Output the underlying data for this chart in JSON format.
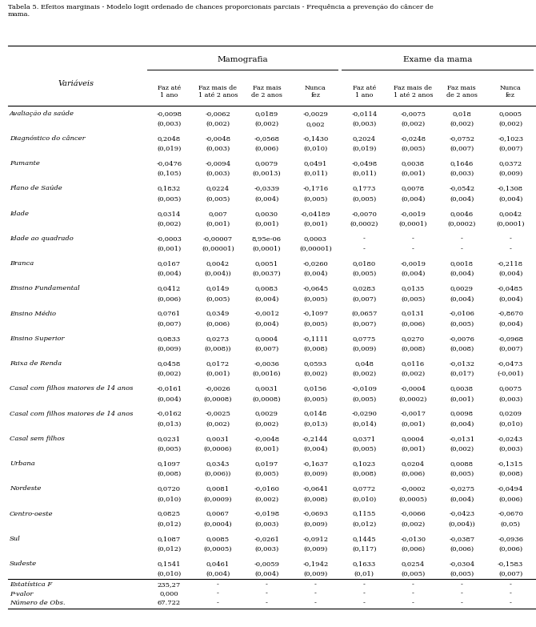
{
  "mamografia_header": "Mamografia",
  "exame_header": "Exame da mama",
  "col_headers_mamo": [
    "Faz até\n1 ano",
    "Faz mais de\n1 até 2 anos",
    "Faz mais\nde 2 anos",
    "Nunca\nfez"
  ],
  "col_headers_exame": [
    "Faz até\n1 ano",
    "Faz mais de\n1 até 2 anos",
    "Faz mais\nde 2 anos",
    "Nunca\nfez"
  ],
  "row_labels": [
    "Avaliação da saúde",
    "Diagnóstico do câncer",
    "Fumante",
    "Plano de Saúde",
    "Idade",
    "Idade ao quadrado",
    "Branca",
    "Ensino Fundamental",
    "Ensino Médio",
    "Ensino Superior",
    "Faixa de Renda",
    "Casal com filhos maiores de 14 anos",
    "Casal com filhos maiores de 14 anos",
    "Casal sem filhos",
    "Urbana",
    "Nordeste",
    "Centro-oeste",
    "Sul",
    "Sudeste"
  ],
  "data_rows": [
    [
      "-0,0098",
      "-0,0062",
      "0,0189",
      "-0,0029",
      "-0,0114",
      "-0,0075",
      "0,018",
      "0,0005"
    ],
    [
      "(0,003)",
      "(0,002)",
      "(0,002)",
      "0,002",
      "(0,003)",
      "(0,002)",
      "(0,002)",
      "(0,002)"
    ],
    [
      "0,2048",
      "-0,0048",
      "-0,0568",
      "-0,1430",
      "0,2024",
      "-0,0248",
      "-0,0752",
      "-0,1023"
    ],
    [
      "(0,019)",
      "(0,003)",
      "(0,006)",
      "(0,010)",
      "(0,019)",
      "(0,005)",
      "(0,007)",
      "(0,007)"
    ],
    [
      "-0,0476",
      "-0,0094",
      "0,0079",
      "0,0491",
      "-0,0498",
      "0,0038",
      "0,1646",
      "0,0372"
    ],
    [
      "(0,105)",
      "(0,003)",
      "(0,0013)",
      "(0,011)",
      "(0,011)",
      "(0,001)",
      "(0,003)",
      "(0,009)"
    ],
    [
      "0,1832",
      "0,0224",
      "-0,0339",
      "-0,1716",
      "0,1773",
      "0,0078",
      "-0,0542",
      "-0,1308"
    ],
    [
      "(0,005)",
      "(0,005)",
      "(0,004)",
      "(0,005)",
      "(0,005)",
      "(0,004)",
      "(0,004)",
      "(0,004)"
    ],
    [
      "0,0314",
      "0,007",
      "0,0030",
      "-0,04189",
      "-0,0070",
      "-0,0019",
      "0,0046",
      "0,0042"
    ],
    [
      "(0,002)",
      "(0,001)",
      "(0,001)",
      "(0,001)",
      "(0,0002)",
      "(0,0001)",
      "(0,0002)",
      "(0,0001)"
    ],
    [
      "-0,0003",
      "-0,00007",
      "8,95e-06",
      "0,0003",
      "-",
      "-",
      "-",
      "-"
    ],
    [
      "(0,001)",
      "(0,00001)",
      "(0,0001)",
      "(0,00001)",
      "-",
      "-",
      "-",
      "-"
    ],
    [
      "0,0167",
      "0,0042",
      "0,0051",
      "-0,0260",
      "0,0180",
      "-0,0019",
      "0,0018",
      "-0,2118"
    ],
    [
      "(0,004)",
      "(0,004))",
      "(0,0037)",
      "(0,004)",
      "(0,005)",
      "(0,004)",
      "(0,004)",
      "(0,004)"
    ],
    [
      "0,0412",
      "0,0149",
      "0,0083",
      "-0,0645",
      "0,0283",
      "0,0135",
      "0,0029",
      "-0,0485"
    ],
    [
      "(0,006)",
      "(0,005)",
      "(0,004)",
      "(0,005)",
      "(0,007)",
      "(0,005)",
      "(0,004)",
      "(0,004)"
    ],
    [
      "0,0761",
      "0,0349",
      "-0,0012",
      "-0,1097",
      "(0,0657",
      "0,0131",
      "-0,0106",
      "-0,8670"
    ],
    [
      "(0,007)",
      "(0,006)",
      "(0,004)",
      "(0,005)",
      "(0,007)",
      "(0,006)",
      "(0,005)",
      "(0,004)"
    ],
    [
      "0,0833",
      "0,0273",
      "0,0004",
      "-0,1111",
      "0,0775",
      "0,0270",
      "-0,0076",
      "-0,0968"
    ],
    [
      "(0,009)",
      "(0,008))",
      "(0,007)",
      "(0,008)",
      "(0,009)",
      "(0,008)",
      "(0,008)",
      "(0,007)"
    ],
    [
      "0,0458",
      "0,0172",
      "-0,0036",
      "0,0593",
      "0,048",
      "0,0116",
      "-0,0132",
      "-0,0473"
    ],
    [
      "(0,002)",
      "(0,001)",
      "(0,0016)",
      "(0,002)",
      "(0,002)",
      "(0,002)",
      "(0,017)",
      "(-0,001)"
    ],
    [
      "-0,0161",
      "-0,0026",
      "0,0031",
      "0,0156",
      "-0,0109",
      "-0,0004",
      "0,0038",
      "0,0075"
    ],
    [
      "(0,004)",
      "(0,0008)",
      "(0,0008)",
      "(0,005)",
      "(0,005)",
      "(0,0002)",
      "(0,001)",
      "(0,003)"
    ],
    [
      "-0,0162",
      "-0,0025",
      "0,0029",
      "0,0148",
      "-0,0290",
      "-0,0017",
      "0,0098",
      "0,0209"
    ],
    [
      "(0,013)",
      "(0,002)",
      "(0,002)",
      "(0,013)",
      "(0,014)",
      "(0,001)",
      "(0,004)",
      "(0,010)"
    ],
    [
      "0,0231",
      "0,0031",
      "-0,0048",
      "-0,2144",
      "0,0371",
      "0,0004",
      "-0,0131",
      "-0,0243"
    ],
    [
      "(0,005)",
      "(0,0006)",
      "(0,001)",
      "(0,004)",
      "(0,005)",
      "(0,001)",
      "(0,002)",
      "(0,003)"
    ],
    [
      "0,1097",
      "0,0343",
      "0,0197",
      "-0,1637",
      "0,1023",
      "0,0204",
      "0,0088",
      "-0,1315"
    ],
    [
      "(0,008)",
      "(0,006))",
      "(0,005)",
      "(0,009)",
      "(0,008)",
      "(0,006)",
      "(0,005)",
      "(0,008)"
    ],
    [
      "0,0720",
      "0,0081",
      "-0,0160",
      "-0,0641",
      "0,0772",
      "-0,0002",
      "-0,0275",
      "-0,0494"
    ],
    [
      "(0,010)",
      "(0,0009)",
      "(0,002)",
      "(0,008)",
      "(0,010)",
      "(0,0005)",
      "(0,004)",
      "(0,006)"
    ],
    [
      "0,0825",
      "0,0067",
      "-0,0198",
      "-0,0693",
      "0,1155",
      "-0,0066",
      "-0,0423",
      "-0,0670"
    ],
    [
      "(0,012)",
      "(0,0004)",
      "(0,003)",
      "(0,009)",
      "(0,012)",
      "(0,002)",
      "(0,004))",
      "(0,05)"
    ],
    [
      "0,1087",
      "0,0085",
      "-0,0261",
      "-0,0912",
      "0,1445",
      "-0,0130",
      "-0,0387",
      "-0,0936"
    ],
    [
      "(0,012)",
      "(0,0005)",
      "(0,003)",
      "(0,009)",
      "(0,117)",
      "(0,006)",
      "(0,006)",
      "(0,006)"
    ],
    [
      "0,1541",
      "0,0461",
      "-0,0059",
      "-0,1942",
      "0,1633",
      "0,0254",
      "-0,0304",
      "-0,1583"
    ],
    [
      "(0,010)",
      "(0,004)",
      "(0,004)",
      "(0,009)",
      "(0,01)",
      "(0,005)",
      "(0,005)",
      "(0,007)"
    ]
  ],
  "footer_labels": [
    "Estatística F",
    "P-valor",
    "Número de Obs."
  ],
  "footer_col1": [
    "235,27",
    "0,000",
    "67.722"
  ],
  "footer_rest_mamo": [
    "-",
    "-",
    "-"
  ],
  "footer_rest_exame": [
    "-",
    "-",
    "-"
  ]
}
